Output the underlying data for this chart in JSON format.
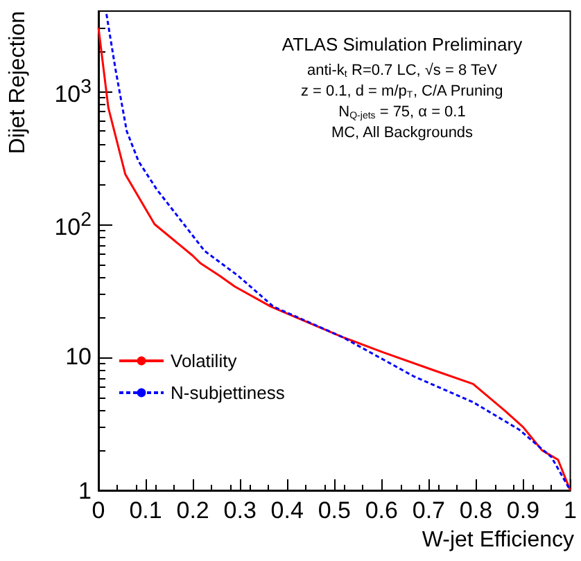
{
  "chart_data": {
    "type": "line",
    "xlabel": "W-jet Efficiency",
    "ylabel": "Dijet Rejection",
    "annotations": [
      "ATLAS Simulation Preliminary",
      "anti-k$_{t}$ R=0.7 LC, √s = 8 TeV",
      "z = 0.1, d = m/p$_{T}$, C/A Pruning",
      "N$_{Q-jets}$ = 75, α = 0.1",
      "MC, All Backgrounds"
    ],
    "log": "y",
    "xlim": [
      0,
      1
    ],
    "xticks": [
      0,
      0.1,
      0.2,
      0.3,
      0.4,
      0.5,
      0.6,
      0.7,
      0.8,
      0.9,
      1
    ],
    "ylim": [
      1,
      4000
    ],
    "yticks": [
      1,
      10,
      {
        "value": 100,
        "label": "10$^{2}$"
      },
      {
        "value": 1000,
        "label": "10$^{3}$"
      }
    ],
    "grid": false,
    "legend": "bottom left",
    "line_style": "solid",
    "marker": "none",
    "series": [
      {
        "name": "Volatility",
        "color": "#ff0000",
        "x": [
          0,
          0.021,
          0.057,
          0.119,
          0.2,
          0.216,
          0.257,
          0.289,
          0.366,
          0.517,
          0.6,
          0.706,
          0.794,
          0.862,
          0.9,
          0.94,
          0.974,
          1
        ],
        "values": [
          3000,
          750,
          237,
          100,
          58,
          51,
          41,
          34,
          24,
          14.2,
          11,
          8.1,
          6.3,
          3.95,
          2.99,
          2.0,
          1.7,
          1
        ]
      },
      {
        "name": "N-subjettiness",
        "color": "#0000ff",
        "line_style": "dashed",
        "x": [
          0.017,
          0.036,
          0.06,
          0.085,
          0.123,
          0.225,
          0.296,
          0.371,
          0.517,
          0.668,
          0.794,
          0.891,
          0.96,
          1
        ],
        "values": [
          3800,
          1470,
          500,
          297,
          184,
          63,
          41,
          24,
          14.2,
          7.2,
          4.6,
          2.87,
          1.78,
          1
        ]
      }
    ]
  }
}
